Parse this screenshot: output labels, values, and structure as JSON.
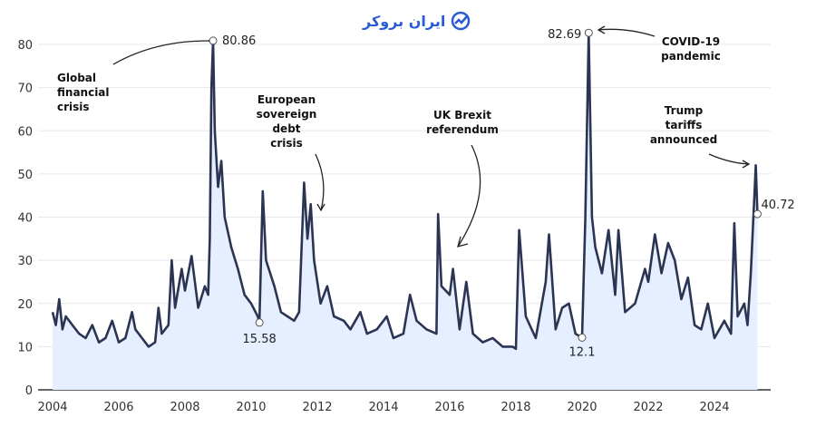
{
  "logo": {
    "text": "ایران بروکر",
    "icon": "chart-trend-circle-icon",
    "color": "#2a5bd7"
  },
  "chart_data": {
    "type": "area",
    "title": "",
    "xlabel": "",
    "ylabel": "",
    "xlim": [
      2004,
      2025.4
    ],
    "ylim": [
      0,
      85
    ],
    "grid": true,
    "line_color": "#2b3553",
    "fill_color": "#e6efff",
    "x_ticks": [
      "2004",
      "2006",
      "2008",
      "2010",
      "2012",
      "2014",
      "2016",
      "2018",
      "2020",
      "2022",
      "2024"
    ],
    "y_ticks": [
      "0",
      "10",
      "20",
      "30",
      "40",
      "50",
      "60",
      "70",
      "80"
    ],
    "x": [
      2004.0,
      2004.1,
      2004.2,
      2004.3,
      2004.4,
      2004.6,
      2004.8,
      2005.0,
      2005.2,
      2005.4,
      2005.6,
      2005.8,
      2006.0,
      2006.2,
      2006.4,
      2006.5,
      2006.7,
      2006.9,
      2007.1,
      2007.2,
      2007.3,
      2007.5,
      2007.6,
      2007.7,
      2007.9,
      2008.0,
      2008.2,
      2008.4,
      2008.6,
      2008.7,
      2008.75,
      2008.8,
      2008.85,
      2008.9,
      2009.0,
      2009.1,
      2009.2,
      2009.4,
      2009.6,
      2009.8,
      2010.0,
      2010.2,
      2010.25,
      2010.35,
      2010.45,
      2010.7,
      2010.9,
      2011.1,
      2011.3,
      2011.45,
      2011.6,
      2011.7,
      2011.8,
      2011.9,
      2012.1,
      2012.3,
      2012.5,
      2012.8,
      2013.0,
      2013.3,
      2013.5,
      2013.8,
      2014.1,
      2014.3,
      2014.6,
      2014.8,
      2015.0,
      2015.3,
      2015.6,
      2015.65,
      2015.75,
      2016.0,
      2016.1,
      2016.3,
      2016.5,
      2016.7,
      2017.0,
      2017.3,
      2017.6,
      2017.9,
      2018.0,
      2018.1,
      2018.3,
      2018.6,
      2018.9,
      2019.0,
      2019.2,
      2019.4,
      2019.6,
      2019.8,
      2020.0,
      2020.1,
      2020.2,
      2020.3,
      2020.4,
      2020.6,
      2020.8,
      2021.0,
      2021.1,
      2021.3,
      2021.6,
      2021.9,
      2022.0,
      2022.2,
      2022.4,
      2022.6,
      2022.8,
      2023.0,
      2023.2,
      2023.4,
      2023.6,
      2023.8,
      2024.0,
      2024.3,
      2024.5,
      2024.6,
      2024.7,
      2024.9,
      2025.0,
      2025.1,
      2025.25,
      2025.3
    ],
    "values": [
      18,
      15,
      21,
      14,
      17,
      15,
      13,
      12,
      15,
      11,
      12,
      16,
      11,
      12,
      18,
      14,
      12,
      10,
      11,
      19,
      13,
      15,
      30,
      19,
      28,
      23,
      31,
      19,
      24,
      22,
      35,
      70,
      80.86,
      60,
      47,
      53,
      40,
      33,
      28,
      22,
      20,
      17,
      15.58,
      46,
      30,
      24,
      18,
      17,
      16,
      18,
      48,
      35,
      43,
      30,
      20,
      24,
      17,
      16,
      14,
      18,
      13,
      14,
      17,
      12,
      13,
      22,
      16,
      14,
      13,
      40.7,
      24,
      22,
      28,
      14,
      25,
      13,
      11,
      12,
      10,
      10,
      9.5,
      37,
      17,
      12,
      25,
      36,
      14,
      19,
      20,
      13,
      12.1,
      40,
      82.69,
      40,
      33,
      27,
      37,
      22,
      37,
      18,
      20,
      28,
      25,
      36,
      27,
      34,
      30,
      21,
      26,
      15,
      14,
      20,
      12,
      16,
      13,
      38.6,
      17,
      20,
      15,
      27,
      52,
      40.72
    ],
    "point_labels": [
      {
        "x": 2008.85,
        "y": 80.86,
        "text": "80.86"
      },
      {
        "x": 2010.25,
        "y": 15.58,
        "text": "15.58"
      },
      {
        "x": 2020.0,
        "y": 12.1,
        "text": "12.1"
      },
      {
        "x": 2020.2,
        "y": 82.69,
        "text": "82.69"
      },
      {
        "x": 2025.3,
        "y": 40.72,
        "text": "40.72"
      }
    ],
    "annotations": [
      {
        "lines": [
          "Global",
          "financial",
          "crisis"
        ]
      },
      {
        "lines": [
          "European",
          "sovereign",
          "debt",
          "crisis"
        ]
      },
      {
        "lines": [
          "UK Brexit",
          "referendum"
        ]
      },
      {
        "lines": [
          "COVID-19",
          "pandemic"
        ]
      },
      {
        "lines": [
          "Trump",
          "tariffs",
          "announced"
        ]
      }
    ]
  }
}
